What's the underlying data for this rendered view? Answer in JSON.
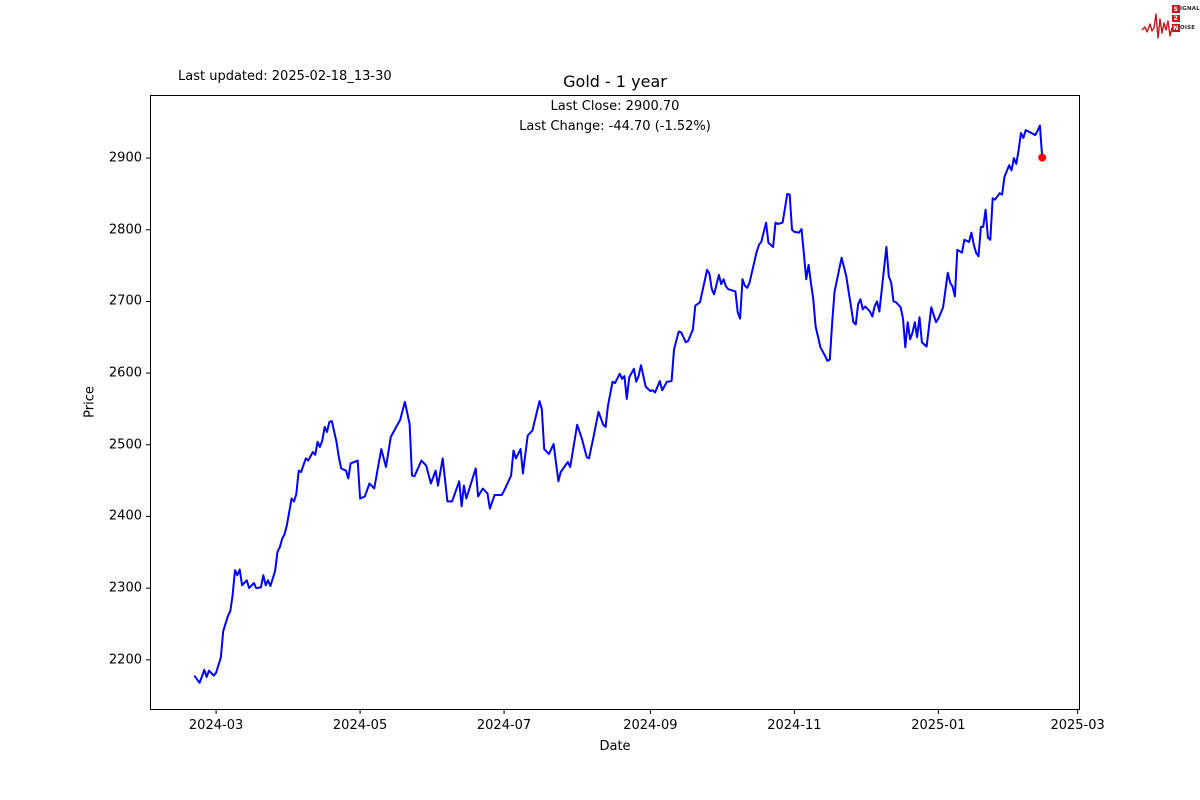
{
  "branding": {
    "logo_color": "#c2181e",
    "logo_text_color": "#2a2a2a",
    "wordmark": [
      {
        "boxed": "S",
        "rest": "IGNAL"
      },
      {
        "boxed": "2",
        "rest": ""
      },
      {
        "boxed": "N",
        "rest": "OISE"
      }
    ]
  },
  "header": {
    "last_updated": "Last updated: 2025-02-18_13-30"
  },
  "chart_data": {
    "type": "line",
    "title": "Gold - 1 year",
    "annotation_lines": [
      "Last Close: 2900.70",
      "Last Change: -44.70 (-1.52%)"
    ],
    "xlabel": "Date",
    "ylabel": "Price",
    "line_color": "#0000ff",
    "marker_color": "#ff0000",
    "grid": false,
    "legend": "none",
    "x_range": [
      "2024-02-02",
      "2025-03-02"
    ],
    "y_range": [
      2130,
      2988
    ],
    "x_ticks": [
      {
        "label": "2024-03",
        "date": "2024-03-01"
      },
      {
        "label": "2024-05",
        "date": "2024-05-01"
      },
      {
        "label": "2024-07",
        "date": "2024-07-01"
      },
      {
        "label": "2024-09",
        "date": "2024-09-01"
      },
      {
        "label": "2024-11",
        "date": "2024-11-01"
      },
      {
        "label": "2025-01",
        "date": "2025-01-01"
      },
      {
        "label": "2025-03",
        "date": "2025-03-01"
      }
    ],
    "y_ticks": [
      2200,
      2300,
      2400,
      2500,
      2600,
      2700,
      2800,
      2900
    ],
    "series": [
      {
        "name": "Gold",
        "points": [
          [
            "2024-02-21",
            2177
          ],
          [
            "2024-02-23",
            2168
          ],
          [
            "2024-02-25",
            2186
          ],
          [
            "2024-02-26",
            2176
          ],
          [
            "2024-02-27",
            2185
          ],
          [
            "2024-02-29",
            2178
          ],
          [
            "2024-03-01",
            2182
          ],
          [
            "2024-03-03",
            2203
          ],
          [
            "2024-03-04",
            2240
          ],
          [
            "2024-03-06",
            2261
          ],
          [
            "2024-03-07",
            2268
          ],
          [
            "2024-03-08",
            2290
          ],
          [
            "2024-03-09",
            2325
          ],
          [
            "2024-03-10",
            2318
          ],
          [
            "2024-03-11",
            2326
          ],
          [
            "2024-03-12",
            2304
          ],
          [
            "2024-03-14",
            2311
          ],
          [
            "2024-03-15",
            2300
          ],
          [
            "2024-03-17",
            2307
          ],
          [
            "2024-03-18",
            2300
          ],
          [
            "2024-03-20",
            2301
          ],
          [
            "2024-03-21",
            2318
          ],
          [
            "2024-03-22",
            2304
          ],
          [
            "2024-03-23",
            2311
          ],
          [
            "2024-03-24",
            2303
          ],
          [
            "2024-03-26",
            2324
          ],
          [
            "2024-03-27",
            2351
          ],
          [
            "2024-03-28",
            2357
          ],
          [
            "2024-03-29",
            2369
          ],
          [
            "2024-03-30",
            2375
          ],
          [
            "2024-03-31",
            2388
          ],
          [
            "2024-04-02",
            2425
          ],
          [
            "2024-04-03",
            2421
          ],
          [
            "2024-04-04",
            2431
          ],
          [
            "2024-04-05",
            2464
          ],
          [
            "2024-04-06",
            2462
          ],
          [
            "2024-04-08",
            2481
          ],
          [
            "2024-04-09",
            2478
          ],
          [
            "2024-04-11",
            2490
          ],
          [
            "2024-04-12",
            2486
          ],
          [
            "2024-04-13",
            2504
          ],
          [
            "2024-04-14",
            2497
          ],
          [
            "2024-04-15",
            2506
          ],
          [
            "2024-04-16",
            2525
          ],
          [
            "2024-04-17",
            2518
          ],
          [
            "2024-04-18",
            2532
          ],
          [
            "2024-04-19",
            2533
          ],
          [
            "2024-04-21",
            2504
          ],
          [
            "2024-04-22",
            2483
          ],
          [
            "2024-04-23",
            2467
          ],
          [
            "2024-04-25",
            2464
          ],
          [
            "2024-04-26",
            2453
          ],
          [
            "2024-04-27",
            2474
          ],
          [
            "2024-04-30",
            2478
          ],
          [
            "2024-05-01",
            2425
          ],
          [
            "2024-05-03",
            2428
          ],
          [
            "2024-05-05",
            2446
          ],
          [
            "2024-05-07",
            2439
          ],
          [
            "2024-05-10",
            2494
          ],
          [
            "2024-05-12",
            2469
          ],
          [
            "2024-05-14",
            2511
          ],
          [
            "2024-05-18",
            2535
          ],
          [
            "2024-05-20",
            2560
          ],
          [
            "2024-05-22",
            2529
          ],
          [
            "2024-05-23",
            2457
          ],
          [
            "2024-05-24",
            2456
          ],
          [
            "2024-05-27",
            2478
          ],
          [
            "2024-05-29",
            2471
          ],
          [
            "2024-05-31",
            2446
          ],
          [
            "2024-06-02",
            2464
          ],
          [
            "2024-06-03",
            2443
          ],
          [
            "2024-06-05",
            2481
          ],
          [
            "2024-06-07",
            2421
          ],
          [
            "2024-06-09",
            2421
          ],
          [
            "2024-06-12",
            2449
          ],
          [
            "2024-06-13",
            2414
          ],
          [
            "2024-06-14",
            2443
          ],
          [
            "2024-06-15",
            2425
          ],
          [
            "2024-06-19",
            2467
          ],
          [
            "2024-06-20",
            2428
          ],
          [
            "2024-06-22",
            2439
          ],
          [
            "2024-06-24",
            2432
          ],
          [
            "2024-06-25",
            2411
          ],
          [
            "2024-06-27",
            2430
          ],
          [
            "2024-06-30",
            2430
          ],
          [
            "2024-07-01",
            2436
          ],
          [
            "2024-07-04",
            2457
          ],
          [
            "2024-07-05",
            2492
          ],
          [
            "2024-07-06",
            2481
          ],
          [
            "2024-07-08",
            2494
          ],
          [
            "2024-07-09",
            2460
          ],
          [
            "2024-07-11",
            2513
          ],
          [
            "2024-07-13",
            2520
          ],
          [
            "2024-07-16",
            2561
          ],
          [
            "2024-07-17",
            2550
          ],
          [
            "2024-07-18",
            2494
          ],
          [
            "2024-07-20",
            2487
          ],
          [
            "2024-07-22",
            2501
          ],
          [
            "2024-07-24",
            2449
          ],
          [
            "2024-07-25",
            2462
          ],
          [
            "2024-07-28",
            2476
          ],
          [
            "2024-07-29",
            2469
          ],
          [
            "2024-08-01",
            2528
          ],
          [
            "2024-08-03",
            2508
          ],
          [
            "2024-08-05",
            2483
          ],
          [
            "2024-08-06",
            2481
          ],
          [
            "2024-08-08",
            2513
          ],
          [
            "2024-08-10",
            2546
          ],
          [
            "2024-08-12",
            2528
          ],
          [
            "2024-08-13",
            2525
          ],
          [
            "2024-08-14",
            2554
          ],
          [
            "2024-08-16",
            2588
          ],
          [
            "2024-08-17",
            2586
          ],
          [
            "2024-08-19",
            2599
          ],
          [
            "2024-08-20",
            2592
          ],
          [
            "2024-08-21",
            2596
          ],
          [
            "2024-08-22",
            2564
          ],
          [
            "2024-08-23",
            2594
          ],
          [
            "2024-08-25",
            2606
          ],
          [
            "2024-08-26",
            2588
          ],
          [
            "2024-08-27",
            2596
          ],
          [
            "2024-08-28",
            2611
          ],
          [
            "2024-08-30",
            2581
          ],
          [
            "2024-09-01",
            2575
          ],
          [
            "2024-09-02",
            2576
          ],
          [
            "2024-09-03",
            2573
          ],
          [
            "2024-09-05",
            2589
          ],
          [
            "2024-09-06",
            2576
          ],
          [
            "2024-09-07",
            2582
          ],
          [
            "2024-09-08",
            2588
          ],
          [
            "2024-09-10",
            2589
          ],
          [
            "2024-09-11",
            2633
          ],
          [
            "2024-09-13",
            2658
          ],
          [
            "2024-09-14",
            2657
          ],
          [
            "2024-09-16",
            2643
          ],
          [
            "2024-09-17",
            2645
          ],
          [
            "2024-09-19",
            2661
          ],
          [
            "2024-09-20",
            2694
          ],
          [
            "2024-09-22",
            2699
          ],
          [
            "2024-09-25",
            2744
          ],
          [
            "2024-09-26",
            2739
          ],
          [
            "2024-09-27",
            2717
          ],
          [
            "2024-09-28",
            2710
          ],
          [
            "2024-09-30",
            2737
          ],
          [
            "2024-10-01",
            2724
          ],
          [
            "2024-10-02",
            2731
          ],
          [
            "2024-10-03",
            2721
          ],
          [
            "2024-10-04",
            2717
          ],
          [
            "2024-10-06",
            2715
          ],
          [
            "2024-10-07",
            2714
          ],
          [
            "2024-10-08",
            2685
          ],
          [
            "2024-10-09",
            2676
          ],
          [
            "2024-10-10",
            2731
          ],
          [
            "2024-10-11",
            2722
          ],
          [
            "2024-10-12",
            2719
          ],
          [
            "2024-10-13",
            2726
          ],
          [
            "2024-10-16",
            2769
          ],
          [
            "2024-10-17",
            2779
          ],
          [
            "2024-10-18",
            2783
          ],
          [
            "2024-10-20",
            2810
          ],
          [
            "2024-10-21",
            2782
          ],
          [
            "2024-10-23",
            2776
          ],
          [
            "2024-10-24",
            2810
          ],
          [
            "2024-10-25",
            2808
          ],
          [
            "2024-10-27",
            2810
          ],
          [
            "2024-10-29",
            2850
          ],
          [
            "2024-10-30",
            2849
          ],
          [
            "2024-10-31",
            2800
          ],
          [
            "2024-11-01",
            2797
          ],
          [
            "2024-11-03",
            2796
          ],
          [
            "2024-11-04",
            2801
          ],
          [
            "2024-11-05",
            2768
          ],
          [
            "2024-11-06",
            2731
          ],
          [
            "2024-11-07",
            2751
          ],
          [
            "2024-11-08",
            2726
          ],
          [
            "2024-11-09",
            2703
          ],
          [
            "2024-11-10",
            2665
          ],
          [
            "2024-11-11",
            2651
          ],
          [
            "2024-11-12",
            2636
          ],
          [
            "2024-11-14",
            2624
          ],
          [
            "2024-11-15",
            2617
          ],
          [
            "2024-11-16",
            2619
          ],
          [
            "2024-11-17",
            2671
          ],
          [
            "2024-11-18",
            2713
          ],
          [
            "2024-11-21",
            2761
          ],
          [
            "2024-11-23",
            2735
          ],
          [
            "2024-11-24",
            2713
          ],
          [
            "2024-11-25",
            2693
          ],
          [
            "2024-11-26",
            2671
          ],
          [
            "2024-11-27",
            2668
          ],
          [
            "2024-11-28",
            2696
          ],
          [
            "2024-11-29",
            2703
          ],
          [
            "2024-11-30",
            2689
          ],
          [
            "2024-12-01",
            2693
          ],
          [
            "2024-12-03",
            2686
          ],
          [
            "2024-12-04",
            2679
          ],
          [
            "2024-12-05",
            2693
          ],
          [
            "2024-12-06",
            2700
          ],
          [
            "2024-12-07",
            2686
          ],
          [
            "2024-12-10",
            2776
          ],
          [
            "2024-12-11",
            2735
          ],
          [
            "2024-12-12",
            2726
          ],
          [
            "2024-12-13",
            2700
          ],
          [
            "2024-12-14",
            2699
          ],
          [
            "2024-12-16",
            2692
          ],
          [
            "2024-12-17",
            2676
          ],
          [
            "2024-12-18",
            2636
          ],
          [
            "2024-12-19",
            2671
          ],
          [
            "2024-12-20",
            2647
          ],
          [
            "2024-12-21",
            2656
          ],
          [
            "2024-12-22",
            2671
          ],
          [
            "2024-12-23",
            2650
          ],
          [
            "2024-12-24",
            2678
          ],
          [
            "2024-12-25",
            2643
          ],
          [
            "2024-12-27",
            2637
          ],
          [
            "2024-12-29",
            2692
          ],
          [
            "2024-12-30",
            2681
          ],
          [
            "2024-12-31",
            2671
          ],
          [
            "2025-01-01",
            2676
          ],
          [
            "2025-01-03",
            2692
          ],
          [
            "2025-01-05",
            2740
          ],
          [
            "2025-01-06",
            2726
          ],
          [
            "2025-01-07",
            2721
          ],
          [
            "2025-01-08",
            2707
          ],
          [
            "2025-01-09",
            2772
          ],
          [
            "2025-01-11",
            2768
          ],
          [
            "2025-01-12",
            2786
          ],
          [
            "2025-01-14",
            2783
          ],
          [
            "2025-01-15",
            2796
          ],
          [
            "2025-01-16",
            2779
          ],
          [
            "2025-01-17",
            2768
          ],
          [
            "2025-01-18",
            2763
          ],
          [
            "2025-01-19",
            2804
          ],
          [
            "2025-01-20",
            2804
          ],
          [
            "2025-01-21",
            2828
          ],
          [
            "2025-01-22",
            2789
          ],
          [
            "2025-01-23",
            2786
          ],
          [
            "2025-01-24",
            2844
          ],
          [
            "2025-01-25",
            2842
          ],
          [
            "2025-01-27",
            2851
          ],
          [
            "2025-01-28",
            2849
          ],
          [
            "2025-01-29",
            2874
          ],
          [
            "2025-01-31",
            2890
          ],
          [
            "2025-02-01",
            2883
          ],
          [
            "2025-02-02",
            2900
          ],
          [
            "2025-02-03",
            2892
          ],
          [
            "2025-02-04",
            2911
          ],
          [
            "2025-02-05",
            2935
          ],
          [
            "2025-02-06",
            2928
          ],
          [
            "2025-02-07",
            2939
          ],
          [
            "2025-02-10",
            2934
          ],
          [
            "2025-02-11",
            2932
          ],
          [
            "2025-02-12",
            2938
          ],
          [
            "2025-02-13",
            2945.4
          ],
          [
            "2025-02-14",
            2900.7
          ]
        ]
      }
    ]
  }
}
